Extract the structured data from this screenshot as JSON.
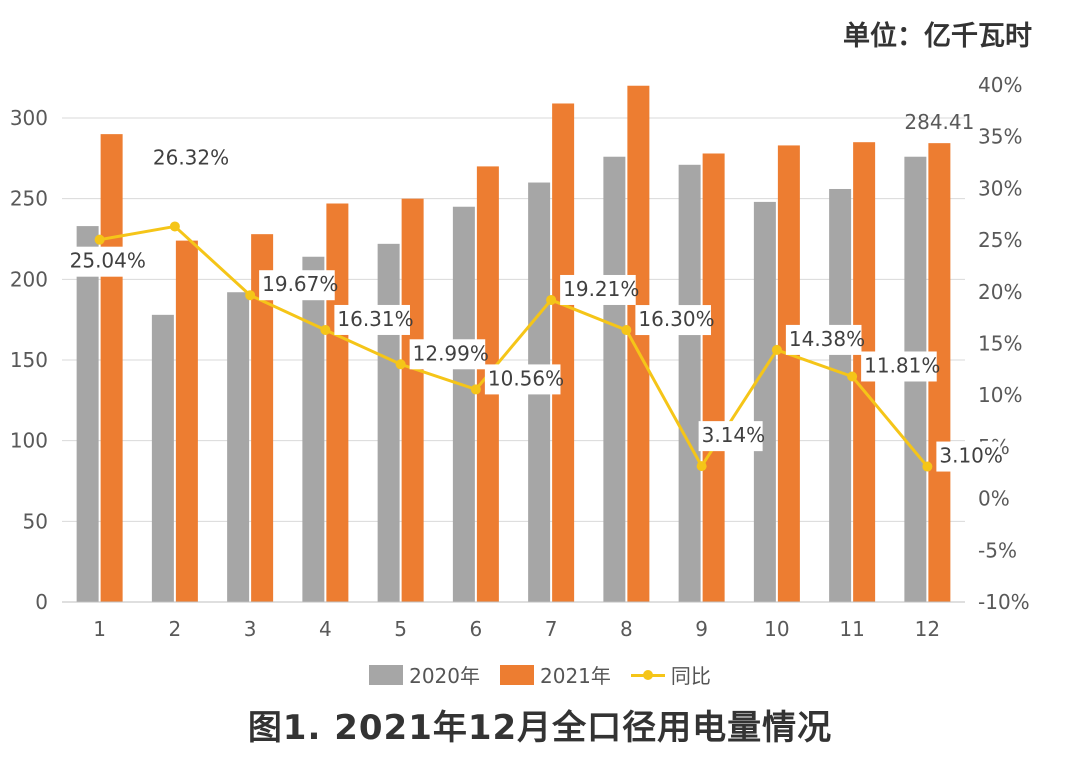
{
  "unit_label": "单位：亿千瓦时",
  "caption": "图1. 2021年12月全口径用电量情况",
  "legend": {
    "s2020": "2020年",
    "s2021": "2021年",
    "yoy": "同比"
  },
  "colors": {
    "s2020": "#a6a6a6",
    "s2021": "#ed7d31",
    "yoy": "#f5c518"
  },
  "chart_data": {
    "type": "bar",
    "categories": [
      "1",
      "2",
      "3",
      "4",
      "5",
      "6",
      "7",
      "8",
      "9",
      "10",
      "11",
      "12"
    ],
    "series": [
      {
        "name": "2020年",
        "type": "bar",
        "axis": "left",
        "values": [
          233,
          178,
          192,
          214,
          222,
          245,
          260,
          276,
          271,
          248,
          256,
          276
        ]
      },
      {
        "name": "2021年",
        "type": "bar",
        "axis": "left",
        "values": [
          290,
          224,
          228,
          247,
          250,
          270,
          309,
          320,
          278,
          283,
          285,
          284.41
        ]
      },
      {
        "name": "同比",
        "type": "line",
        "axis": "right",
        "values": [
          25.04,
          26.32,
          19.67,
          16.31,
          12.99,
          10.56,
          19.21,
          16.3,
          3.14,
          14.38,
          11.81,
          3.1
        ]
      }
    ],
    "data_labels": {
      "line": [
        "25.04%",
        "26.32%",
        "19.67%",
        "16.31%",
        "12.99%",
        "10.56%",
        "19.21%",
        "16.30%",
        "3.14%",
        "14.38%",
        "11.81%",
        "3.10%"
      ],
      "bar_last_2021": "284.41"
    },
    "left_axis": {
      "ylim": [
        0,
        300
      ],
      "ticks": [
        "0",
        "50",
        "100",
        "150",
        "200",
        "250",
        "300"
      ]
    },
    "right_axis": {
      "ylim": [
        -10,
        40
      ],
      "ticks": [
        "-10%",
        "-5%",
        "0%",
        "5%",
        "10%",
        "15%",
        "20%",
        "25%",
        "30%",
        "35%",
        "40%"
      ]
    },
    "grid": true,
    "legend_position": "bottom"
  }
}
